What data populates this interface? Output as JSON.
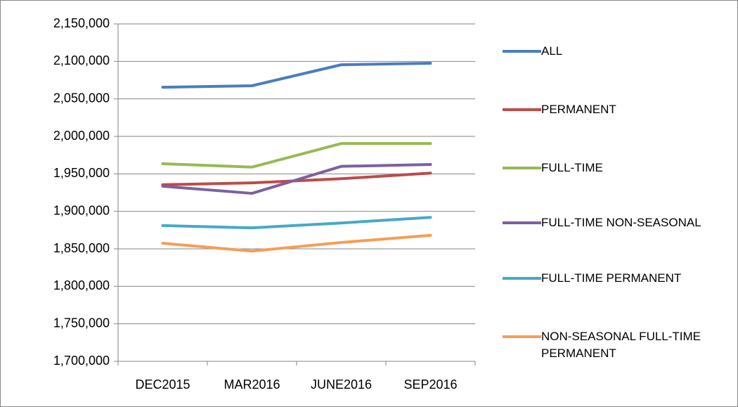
{
  "chart_data": {
    "type": "line",
    "categories": [
      "DEC2015",
      "MAR2016",
      "JUNE2016",
      "SEP2016"
    ],
    "series": [
      {
        "name": "ALL",
        "color": "#4a7ebb",
        "values": [
          2065500,
          2067500,
          2095500,
          2097500
        ]
      },
      {
        "name": "PERMANENT",
        "color": "#be4b48",
        "values": [
          1935500,
          1938000,
          1943500,
          1951000
        ]
      },
      {
        "name": "FULL-TIME",
        "color": "#98b954",
        "values": [
          1963500,
          1959000,
          1990500,
          1990500
        ]
      },
      {
        "name": "FULL-TIME NON-SEASONAL",
        "color": "#7d60a0",
        "values": [
          1933500,
          1924000,
          1960000,
          1962500
        ]
      },
      {
        "name": "FULL-TIME PERMANENT",
        "color": "#46aac5",
        "values": [
          1881000,
          1878000,
          1884500,
          1892000
        ]
      },
      {
        "name": "NON-SEASONAL FULL-TIME PERMANENT",
        "color": "#f59d56",
        "values": [
          1857500,
          1847000,
          1858500,
          1868000
        ]
      }
    ],
    "ylim": [
      1700000,
      2150000
    ],
    "yticks": [
      {
        "value": 1700000,
        "label": "1,700,000"
      },
      {
        "value": 1750000,
        "label": "1,750,000"
      },
      {
        "value": 1800000,
        "label": "1,800,000"
      },
      {
        "value": 1850000,
        "label": "1,850,000"
      },
      {
        "value": 1900000,
        "label": "1,900,000"
      },
      {
        "value": 1950000,
        "label": "1,950,000"
      },
      {
        "value": 2000000,
        "label": "2,000,000"
      },
      {
        "value": 2050000,
        "label": "2,050,000"
      },
      {
        "value": 2100000,
        "label": "2,100,000"
      },
      {
        "value": 2150000,
        "label": "2,150,000"
      }
    ],
    "grid": true,
    "legend": "right"
  }
}
